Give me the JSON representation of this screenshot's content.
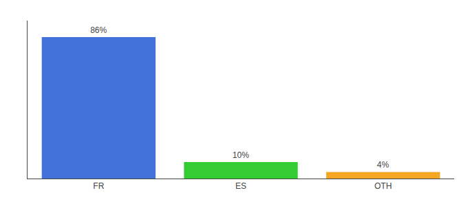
{
  "chart_data": {
    "type": "bar",
    "categories": [
      "FR",
      "ES",
      "OTH"
    ],
    "values": [
      86,
      10,
      4
    ],
    "value_labels": [
      "86%",
      "10%",
      "4%"
    ],
    "colors": [
      "#4472db",
      "#33cc33",
      "#f5a623"
    ],
    "ylim": [
      0,
      96
    ],
    "yticks": [],
    "data_labels": true,
    "tick_labels": "x",
    "grid": false
  }
}
